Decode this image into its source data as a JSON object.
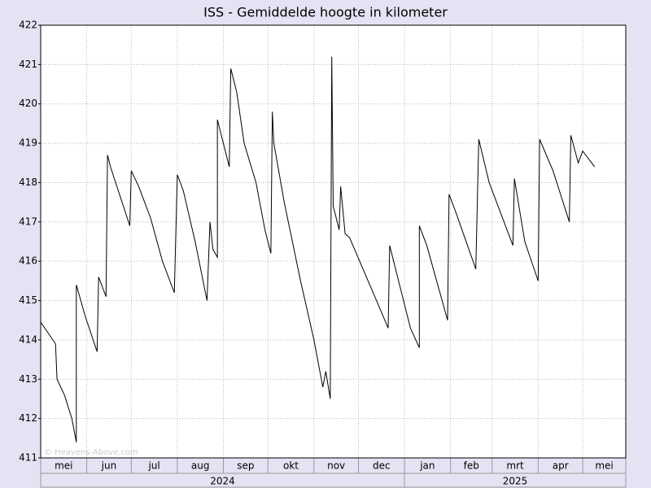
{
  "chart_data": {
    "type": "line",
    "title": "ISS - Gemiddelde hoogte in kilometer",
    "watermark": "© Heavens-Above.com",
    "x": [
      0,
      10,
      11,
      16,
      21,
      24,
      24,
      27,
      30,
      38,
      39,
      44,
      45,
      47,
      60,
      61,
      66,
      74,
      82,
      90,
      92,
      96,
      104,
      112,
      114,
      116,
      119,
      119,
      127,
      128,
      132,
      137,
      145,
      151,
      155,
      156,
      157,
      164,
      175,
      184,
      190,
      192,
      195,
      196,
      197,
      201,
      202,
      205,
      208,
      225,
      234,
      235,
      241,
      249,
      255,
      255,
      260,
      274,
      275,
      280,
      293,
      295,
      302,
      318,
      319,
      326,
      335,
      336,
      345,
      356,
      357,
      362,
      365,
      373
    ],
    "series": [
      {
        "color": "#000000",
        "values": [
          414.45,
          413.9,
          413.0,
          412.6,
          412.0,
          411.4,
          415.4,
          415.0,
          414.6,
          413.7,
          415.6,
          415.1,
          418.7,
          418.4,
          416.9,
          418.3,
          417.9,
          417.1,
          416.0,
          415.2,
          418.2,
          417.8,
          416.5,
          415.0,
          417.0,
          416.3,
          416.1,
          419.6,
          418.4,
          420.9,
          420.3,
          419.0,
          418.0,
          416.8,
          416.2,
          419.8,
          419.0,
          417.5,
          415.5,
          414.0,
          412.8,
          413.2,
          412.5,
          421.2,
          417.4,
          416.8,
          417.9,
          416.7,
          416.6,
          415.1,
          414.3,
          416.4,
          415.5,
          414.3,
          413.8,
          416.9,
          416.4,
          414.5,
          417.7,
          417.2,
          415.8,
          419.1,
          418.0,
          416.4,
          418.1,
          416.5,
          415.5,
          419.1,
          418.3,
          417.0,
          419.2,
          418.5,
          418.8,
          418.4
        ]
      }
    ],
    "xlim": [
      0,
      394
    ],
    "xticks": [
      {
        "value": 0,
        "label": "mei"
      },
      {
        "value": 31,
        "label": "jun"
      },
      {
        "value": 61,
        "label": "jul"
      },
      {
        "value": 92,
        "label": "aug"
      },
      {
        "value": 123,
        "label": "sep"
      },
      {
        "value": 153,
        "label": "okt"
      },
      {
        "value": 184,
        "label": "nov"
      },
      {
        "value": 214,
        "label": "dec"
      },
      {
        "value": 245,
        "label": "jan"
      },
      {
        "value": 276,
        "label": "feb"
      },
      {
        "value": 304,
        "label": "mrt"
      },
      {
        "value": 335,
        "label": "apr"
      },
      {
        "value": 365,
        "label": "mei"
      }
    ],
    "year_ticks": [
      {
        "value": 0,
        "label": "2024"
      },
      {
        "value": 245,
        "label": "2025"
      }
    ],
    "ylim": [
      411,
      422
    ],
    "yticks": [
      411,
      412,
      413,
      414,
      415,
      416,
      417,
      418,
      419,
      420,
      421,
      422
    ],
    "grid": true
  }
}
